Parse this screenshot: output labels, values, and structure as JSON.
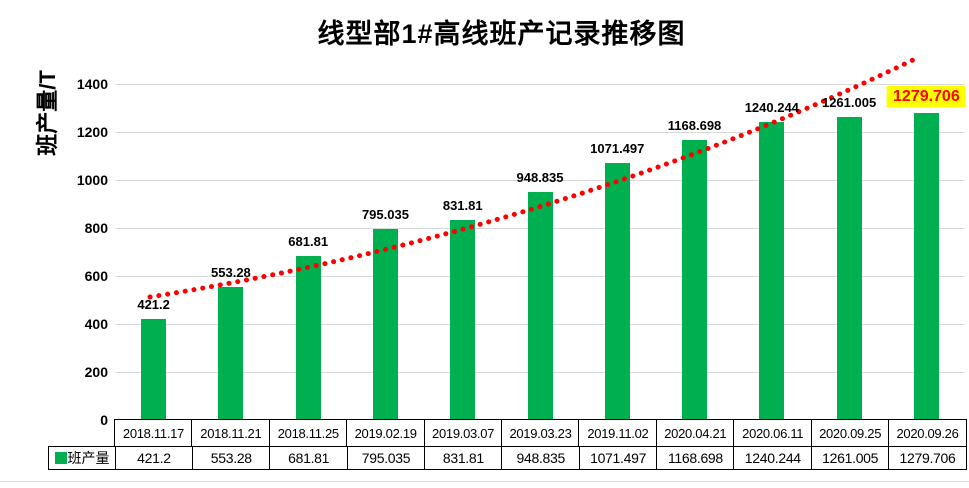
{
  "chart_data": {
    "type": "bar",
    "title": "线型部1#高线班产记录推移图",
    "ylabel": "班产量/T",
    "xlabel": "",
    "series_name": "班产量",
    "categories": [
      "2018.11.17",
      "2018.11.21",
      "2018.11.25",
      "2019.02.19",
      "2019.03.07",
      "2019.03.23",
      "2019.11.02",
      "2020.04.21",
      "2020.06.11",
      "2020.09.25",
      "2020.09.26"
    ],
    "values": [
      421.2,
      553.28,
      681.81,
      795.035,
      831.81,
      948.835,
      1071.497,
      1168.698,
      1240.244,
      1261.005,
      1279.706
    ],
    "value_labels": [
      "421.2",
      "553.28",
      "681.81",
      "795.035",
      "831.81",
      "948.835",
      "1071.497",
      "1168.698",
      "1240.244",
      "1261.005",
      "1279.706"
    ],
    "ylim": [
      0,
      1500
    ],
    "yticks": [
      0,
      200,
      400,
      600,
      800,
      1000,
      1200,
      1400
    ],
    "grid": true,
    "legend_position": "bottom-left",
    "bar_color": "#00B050",
    "gridline_color": "#d9d9d9",
    "trendline": {
      "style": "dotted",
      "color": "#FF0000"
    },
    "highlight": {
      "index": 10,
      "background": "#FFFF00",
      "text_color": "#FF0000"
    },
    "data_table_shown": true
  }
}
